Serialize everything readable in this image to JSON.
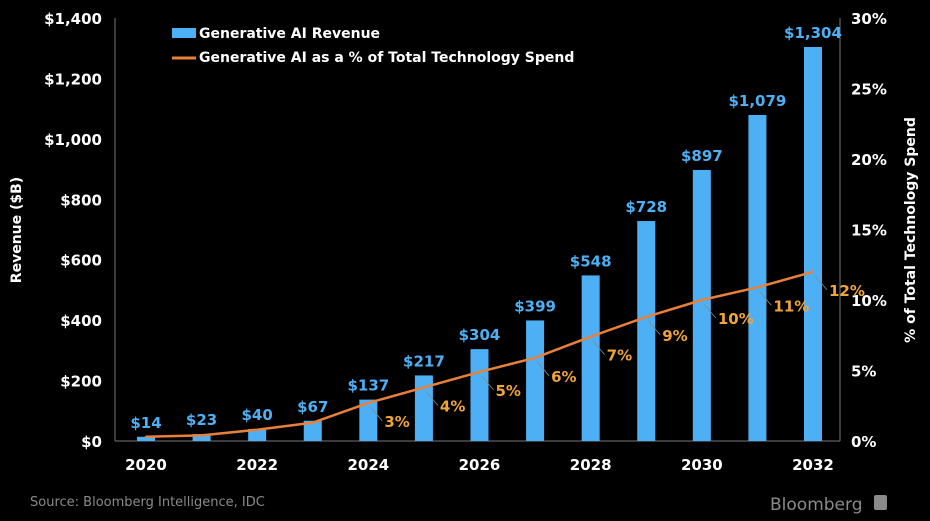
{
  "chart_data": {
    "type": "bar+line",
    "categories": [
      "2020",
      "2021",
      "2022",
      "2023",
      "2024",
      "2025",
      "2026",
      "2027",
      "2028",
      "2029",
      "2030",
      "2031",
      "2032"
    ],
    "x_tick_labels": [
      "2020",
      "2022",
      "2024",
      "2026",
      "2028",
      "2030",
      "2032"
    ],
    "series": [
      {
        "name": "Generative AI Revenue",
        "type": "bar",
        "axis": "left",
        "color": "#4DB0F5",
        "values": [
          14,
          23,
          40,
          67,
          137,
          217,
          304,
          399,
          548,
          728,
          897,
          1079,
          1304
        ],
        "data_labels": [
          "$14",
          "$23",
          "$40",
          "$67",
          "$137",
          "$217",
          "$304",
          "$399",
          "$548",
          "$728",
          "$897",
          "$1,079",
          "$1,304"
        ]
      },
      {
        "name": "Generative AI as a % of Total Technology Spend",
        "type": "line",
        "axis": "right",
        "color": "#E8803A",
        "label_color": "#F0A43A",
        "values": [
          0.3,
          0.4,
          0.8,
          1.3,
          2.7,
          3.8,
          4.9,
          5.9,
          7.4,
          8.8,
          10.0,
          10.9,
          12.0
        ],
        "data_labels": [
          null,
          null,
          null,
          null,
          "3%",
          "4%",
          "5%",
          "6%",
          "7%",
          "9%",
          "10%",
          "11%",
          "12%"
        ]
      }
    ],
    "ylabel_left": "Revenue ($B)",
    "ylabel_right": "% of Total Technology Spend",
    "ylim_left": [
      0,
      1400
    ],
    "ylim_right": [
      0,
      30
    ],
    "left_ticks": [
      "$0",
      "$200",
      "$400",
      "$600",
      "$800",
      "$1,000",
      "$1,200",
      "$1,400"
    ],
    "right_ticks": [
      "0%",
      "5%",
      "10%",
      "15%",
      "20%",
      "25%",
      "30%"
    ],
    "grid": false,
    "legend_placement": "top-left",
    "background": "#000000"
  },
  "footer": {
    "source": "Source: Bloomberg Intelligence, IDC",
    "logo": "Bloomberg"
  }
}
